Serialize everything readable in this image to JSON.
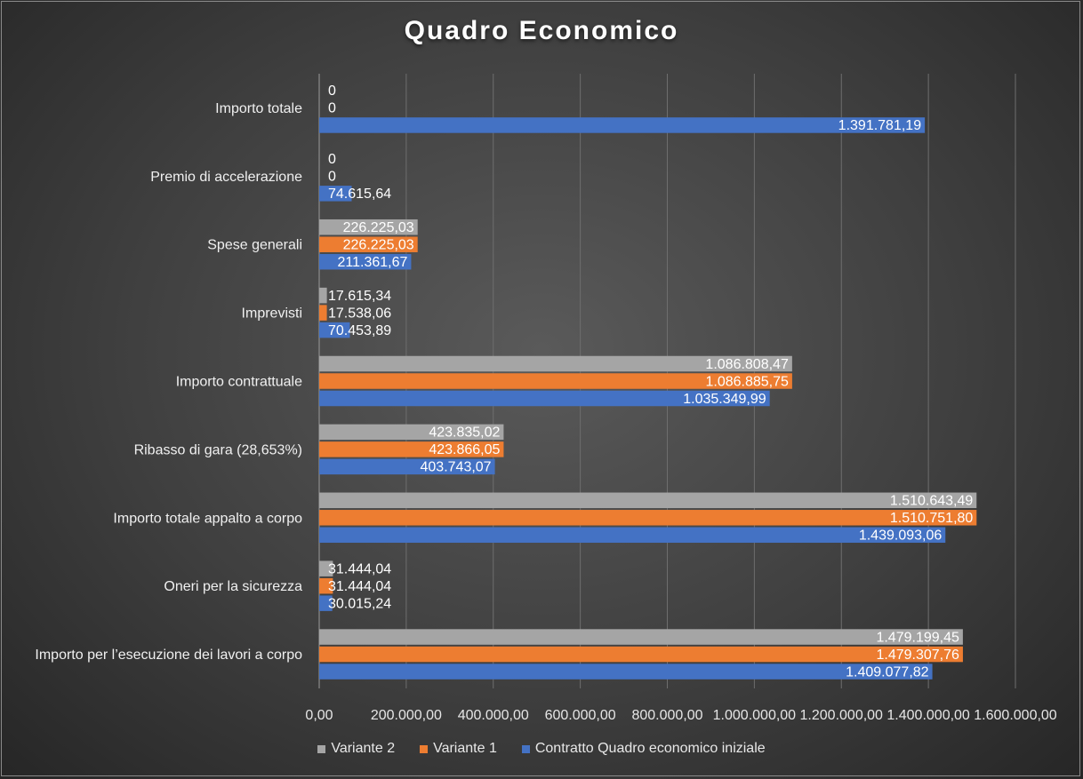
{
  "chart_data": {
    "type": "bar",
    "orientation": "horizontal",
    "title": "Quadro Economico",
    "categories": [
      "Importo per l’esecuzione dei lavori a corpo",
      "Oneri per la sicurezza",
      "Importo totale appalto a corpo",
      "Ribasso di gara (28,653%)",
      "Importo contrattuale",
      "Imprevisti",
      "Spese generali",
      "Premio di accelerazione",
      "Importo totale"
    ],
    "series": [
      {
        "name": "Contratto Quadro economico iniziale",
        "color": "#4472c4",
        "values": [
          1409077.82,
          30015.24,
          1439093.06,
          403743.07,
          1035349.99,
          70453.89,
          211361.67,
          74615.64,
          1391781.19
        ],
        "labels": [
          "1.409.077,82",
          "30.015,24",
          "1.439.093,06",
          "403.743,07",
          "1.035.349,99",
          "70.453,89",
          "211.361,67",
          "74.615,64",
          "1.391.781,19"
        ]
      },
      {
        "name": "Variante 1",
        "color": "#ed7d31",
        "values": [
          1479307.76,
          31444.04,
          1510751.8,
          423866.05,
          1086885.75,
          17538.06,
          226225.03,
          0,
          0
        ],
        "labels": [
          "1.479.307,76",
          "31.444,04",
          "1.510.751,80",
          "423.866,05",
          "1.086.885,75",
          "17.538,06",
          "226.225,03",
          "0",
          "0"
        ]
      },
      {
        "name": "Variante 2",
        "color": "#a5a5a5",
        "values": [
          1479199.45,
          31444.04,
          1510643.49,
          423835.02,
          1086808.47,
          17615.34,
          226225.03,
          0,
          0
        ],
        "labels": [
          "1.479.199,45",
          "31.444,04",
          "1.510.643,49",
          "423.835,02",
          "1.086.808,47",
          "17.615,34",
          "226.225,03",
          "0",
          "0"
        ]
      }
    ],
    "xlim": [
      0,
      1600000
    ],
    "xticks": [
      0,
      200000,
      400000,
      600000,
      800000,
      1000000,
      1200000,
      1400000,
      1600000
    ],
    "xtick_labels": [
      "0,00",
      "200.000,00",
      "400.000,00",
      "600.000,00",
      "800.000,00",
      "1.000.000,00",
      "1.200.000,00",
      "1.400.000,00",
      "1.600.000,00"
    ],
    "grid": true,
    "legend_position": "bottom",
    "legend_order": [
      "Variante 2",
      "Variante 1",
      "Contratto Quadro economico iniziale"
    ]
  }
}
